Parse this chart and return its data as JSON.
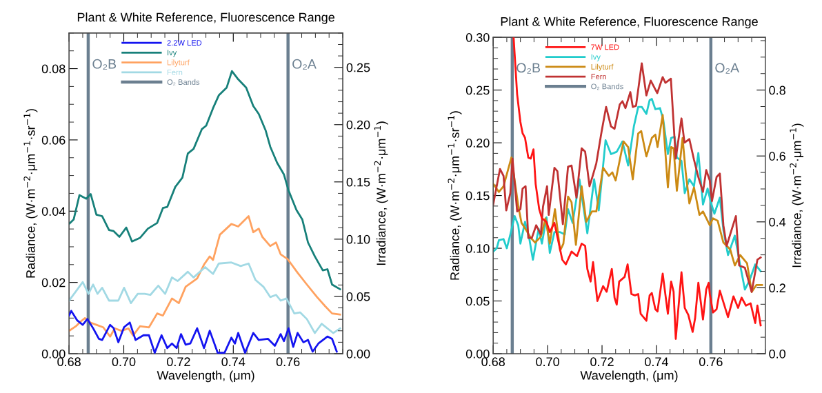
{
  "chart_data": [
    {
      "type": "line",
      "title": "Plant & White Reference, Fluorescence Range",
      "xlabel": "Wavelength, (μm)",
      "ylabel": "Radiance, (W·m$^{−2}$·μm$^{−1}$·sr$^{−1}$)",
      "y2label": "Irradiance, (W·m$^{−2}$·μm$^{−1}$)",
      "xlim": [
        0.68,
        0.78
      ],
      "xticks": [
        {
          "value": 0.68,
          "label": "0.68"
        },
        {
          "value": 0.7,
          "label": "0.70"
        },
        {
          "value": 0.72,
          "label": "0.72"
        },
        {
          "value": 0.74,
          "label": "0.74"
        },
        {
          "value": 0.76,
          "label": "0.76"
        }
      ],
      "ylim": [
        0,
        0.09
      ],
      "yticks": [
        {
          "value": 0,
          "label": "0.00"
        },
        {
          "value": 0.02,
          "label": "0.02"
        },
        {
          "value": 0.04,
          "label": "0.04"
        },
        {
          "value": 0.06,
          "label": "0.06"
        },
        {
          "value": 0.08,
          "label": "0.08"
        }
      ],
      "y2lim": [
        0,
        0.28
      ],
      "y2ticks": [
        {
          "value": 0,
          "label": "0.00"
        },
        {
          "value": 0.05,
          "label": "0.05"
        },
        {
          "value": 0.1,
          "label": "0.10"
        },
        {
          "value": 0.15,
          "label": "0.15"
        },
        {
          "value": 0.2,
          "label": "0.20"
        },
        {
          "value": 0.25,
          "label": "0.25"
        }
      ],
      "legend": "top left",
      "grid": false,
      "annotations": [
        "O₂ Bands"
      ],
      "ref_lines": [
        {
          "axis": "x",
          "value": 0.687,
          "label": "O₂B",
          "color": "#6b7f90"
        },
        {
          "axis": "x",
          "value": 0.76,
          "label": "O₂A",
          "color": "#6b7f90"
        }
      ],
      "series": [
        {
          "name": "2.2W LED",
          "color": "#1414f0",
          "axis": "y2",
          "x": [
            0.68,
            0.6808,
            0.6829,
            0.685,
            0.6867,
            0.6888,
            0.6909,
            0.6921,
            0.695,
            0.6963,
            0.698,
            0.7001,
            0.7022,
            0.7043,
            0.7072,
            0.7092,
            0.7113,
            0.7138,
            0.7159,
            0.7176,
            0.7193,
            0.7209,
            0.7226,
            0.7243,
            0.7268,
            0.7293,
            0.7314,
            0.7343,
            0.7368,
            0.7393,
            0.7406,
            0.7418,
            0.7443,
            0.7473,
            0.7493,
            0.7527,
            0.7552,
            0.7573,
            0.7585,
            0.7602,
            0.7619,
            0.7635,
            0.7656,
            0.7673,
            0.769,
            0.7711,
            0.7744,
            0.7761,
            0.7778
          ],
          "values": [
            0.0333,
            0.0374,
            0.0293,
            0.0252,
            0.0303,
            0.0222,
            0.013,
            0.012,
            0.0252,
            0.0222,
            0.01,
            0.0232,
            0.0272,
            0.012,
            0.0161,
            0.0161,
            0.0008,
            0.0161,
            0.0049,
            0.0089,
            0.0049,
            0.0171,
            0.0079,
            0.0089,
            0.0222,
            0.0049,
            0.0201,
            0.0008,
            0.0008,
            0.014,
            0.0089,
            0.0181,
            0.0008,
            0.0181,
            0.012,
            0.013,
            0.0069,
            0.0171,
            0.011,
            0.0222,
            0.0059,
            0.0181,
            0.01,
            0.012,
            0.0018,
            0.0089,
            0.015,
            0.013,
            0.0018
          ]
        },
        {
          "name": "Ivy",
          "color": "#17807a",
          "x": [
            0.68,
            0.6817,
            0.6838,
            0.6863,
            0.6879,
            0.69,
            0.6921,
            0.6946,
            0.6963,
            0.6984,
            0.7009,
            0.703,
            0.7059,
            0.7088,
            0.7122,
            0.7143,
            0.7159,
            0.7188,
            0.7214,
            0.7234,
            0.7255,
            0.7285,
            0.7301,
            0.7326,
            0.7347,
            0.7376,
            0.7395,
            0.7418,
            0.7447,
            0.7473,
            0.7493,
            0.7518,
            0.7535,
            0.756,
            0.7585,
            0.7602,
            0.7631,
            0.7652,
            0.7673,
            0.7698,
            0.7727,
            0.7744,
            0.7761,
            0.779
          ],
          "values": [
            0.0364,
            0.0377,
            0.0445,
            0.0435,
            0.0448,
            0.039,
            0.0386,
            0.0347,
            0.0344,
            0.0328,
            0.0354,
            0.0315,
            0.0325,
            0.0351,
            0.0367,
            0.0409,
            0.0412,
            0.0468,
            0.0494,
            0.0562,
            0.0575,
            0.063,
            0.064,
            0.0689,
            0.0725,
            0.0747,
            0.0793,
            0.077,
            0.0747,
            0.0695,
            0.0673,
            0.0627,
            0.0581,
            0.0536,
            0.0503,
            0.0458,
            0.0403,
            0.0377,
            0.0312,
            0.0273,
            0.0234,
            0.0237,
            0.0194,
            0.0181
          ]
        },
        {
          "name": "Lilyturf",
          "color": "#ffa260",
          "x": [
            0.68,
            0.6825,
            0.6842,
            0.6858,
            0.6879,
            0.69,
            0.6925,
            0.695,
            0.6967,
            0.6992,
            0.7017,
            0.7034,
            0.7059,
            0.7092,
            0.7122,
            0.7143,
            0.7176,
            0.7201,
            0.7226,
            0.7268,
            0.7293,
            0.7314,
            0.7326,
            0.7351,
            0.7393,
            0.7418,
            0.7456,
            0.7473,
            0.7493,
            0.7506,
            0.7535,
            0.7556,
            0.7573,
            0.7598,
            0.7635,
            0.7669,
            0.7706,
            0.7736,
            0.7761,
            0.779
          ],
          "values": [
            0.0064,
            0.0077,
            0.009,
            0.01,
            0.0087,
            0.0081,
            0.0074,
            0.0048,
            0.0071,
            0.0064,
            0.0071,
            0.0051,
            0.0077,
            0.0074,
            0.0113,
            0.0107,
            0.0155,
            0.0142,
            0.0188,
            0.0211,
            0.025,
            0.0273,
            0.0263,
            0.0334,
            0.0364,
            0.0357,
            0.0386,
            0.0341,
            0.0351,
            0.0328,
            0.0302,
            0.0312,
            0.0279,
            0.0266,
            0.0227,
            0.0194,
            0.0159,
            0.0133,
            0.0113,
            0.011
          ]
        },
        {
          "name": "Fern",
          "color": "#a2d9e4",
          "x": [
            0.68,
            0.6825,
            0.685,
            0.6871,
            0.6888,
            0.6904,
            0.6921,
            0.6946,
            0.698,
            0.7001,
            0.7026,
            0.7051,
            0.7076,
            0.7097,
            0.7126,
            0.7151,
            0.7176,
            0.7197,
            0.7234,
            0.7255,
            0.7297,
            0.7326,
            0.7347,
            0.7393,
            0.7427,
            0.7456,
            0.7481,
            0.751,
            0.7535,
            0.7556,
            0.7573,
            0.7594,
            0.7623,
            0.7644,
            0.7669,
            0.7698,
            0.7723,
            0.7765,
            0.779
          ],
          "values": [
            0.0149,
            0.0175,
            0.0201,
            0.0168,
            0.0194,
            0.0168,
            0.0185,
            0.0149,
            0.0149,
            0.0185,
            0.0142,
            0.0168,
            0.0168,
            0.0165,
            0.0191,
            0.0168,
            0.0214,
            0.0204,
            0.023,
            0.0214,
            0.0243,
            0.0224,
            0.0253,
            0.0256,
            0.0246,
            0.0253,
            0.0207,
            0.0188,
            0.0159,
            0.0165,
            0.0149,
            0.0155,
            0.0113,
            0.0116,
            0.0097,
            0.0058,
            0.0084,
            0.0058,
            0.0071
          ]
        }
      ]
    },
    {
      "type": "line",
      "title": "Plant & White Reference, Fluorescence Range",
      "xlabel": "Wavelength, (μm)",
      "ylabel": "Radiance, (W·m$^{−2}$·μm$^{−1}$·sr$^{−1}$)",
      "y2label": "Irradiance, (W·m$^{−2}$·μm$^{−1}$)",
      "xlim": [
        0.68,
        0.78
      ],
      "xticks": [
        {
          "value": 0.68,
          "label": "0.68"
        },
        {
          "value": 0.7,
          "label": "0.70"
        },
        {
          "value": 0.72,
          "label": "0.72"
        },
        {
          "value": 0.74,
          "label": "0.74"
        },
        {
          "value": 0.76,
          "label": "0.76"
        }
      ],
      "ylim": [
        0,
        0.3
      ],
      "yticks": [
        {
          "value": 0,
          "label": "0.00"
        },
        {
          "value": 0.05,
          "label": "0.05"
        },
        {
          "value": 0.1,
          "label": "0.10"
        },
        {
          "value": 0.15,
          "label": "0.15"
        },
        {
          "value": 0.2,
          "label": "0.20"
        },
        {
          "value": 0.25,
          "label": "0.25"
        },
        {
          "value": 0.3,
          "label": "0.30"
        }
      ],
      "y2lim": [
        0,
        0.96
      ],
      "y2ticks": [
        {
          "value": 0,
          "label": "0.0"
        },
        {
          "value": 0.2,
          "label": "0.2"
        },
        {
          "value": 0.4,
          "label": "0.4"
        },
        {
          "value": 0.6,
          "label": "0.6"
        },
        {
          "value": 0.8,
          "label": "0.8"
        }
      ],
      "legend": "top left",
      "grid": false,
      "annotations": [
        "O₂ Bands"
      ],
      "ref_lines": [
        {
          "axis": "x",
          "value": 0.687,
          "label": "O₂B",
          "color": "#6b7f90"
        },
        {
          "axis": "x",
          "value": 0.76,
          "label": "O₂A",
          "color": "#6b7f90"
        }
      ],
      "series": [
        {
          "name": "7W LED",
          "color": "#ff1414",
          "axis": "y2",
          "x": [
            0.6875,
            0.6888,
            0.69,
            0.6908,
            0.6917,
            0.6929,
            0.6938,
            0.6948,
            0.6956,
            0.6969,
            0.6979,
            0.6996,
            0.7008,
            0.7025,
            0.7054,
            0.7067,
            0.7088,
            0.7108,
            0.7125,
            0.7138,
            0.7146,
            0.7158,
            0.7167,
            0.7183,
            0.7204,
            0.7217,
            0.7236,
            0.7246,
            0.7254,
            0.7263,
            0.7283,
            0.7294,
            0.7308,
            0.7321,
            0.7333,
            0.7342,
            0.7363,
            0.7375,
            0.7383,
            0.7396,
            0.7404,
            0.7423,
            0.7442,
            0.7454,
            0.7463,
            0.7471,
            0.7492,
            0.7504,
            0.7517,
            0.7533,
            0.7542,
            0.7554,
            0.7571,
            0.7583,
            0.7592,
            0.7596,
            0.7608,
            0.7621,
            0.7633,
            0.7663,
            0.7683,
            0.77,
            0.7713,
            0.7729,
            0.7746,
            0.7763,
            0.7771,
            0.7783
          ],
          "values": [
            0.96,
            0.787,
            0.703,
            0.669,
            0.655,
            0.595,
            0.592,
            0.62,
            0.515,
            0.439,
            0.411,
            0.4,
            0.369,
            0.397,
            0.285,
            0.271,
            0.31,
            0.296,
            0.334,
            0.327,
            0.257,
            0.219,
            0.278,
            0.16,
            0.205,
            0.188,
            0.257,
            0.17,
            0.149,
            0.219,
            0.233,
            0.271,
            0.181,
            0.177,
            0.181,
            0.121,
            0.1,
            0.177,
            0.184,
            0.135,
            0.128,
            0.243,
            0.121,
            0.219,
            0.188,
            0.045,
            0.247,
            0.139,
            0.118,
            0.066,
            0.107,
            0.215,
            0.104,
            0.195,
            0.215,
            0.181,
            0.125,
            0.135,
            0.191,
            0.111,
            0.174,
            0.139,
            0.17,
            0.146,
            0.153,
            0.093,
            0.146,
            0.086
          ]
        },
        {
          "name": "Ivy",
          "color": "#22cccc",
          "x": [
            0.68,
            0.6813,
            0.6821,
            0.6838,
            0.685,
            0.6863,
            0.6879,
            0.6892,
            0.69,
            0.6917,
            0.6933,
            0.6946,
            0.6967,
            0.6979,
            0.6996,
            0.7008,
            0.7025,
            0.7046,
            0.7063,
            0.7075,
            0.7092,
            0.7117,
            0.7129,
            0.7146,
            0.7171,
            0.7188,
            0.7213,
            0.7233,
            0.7254,
            0.7275,
            0.7296,
            0.7317,
            0.7333,
            0.7346,
            0.7363,
            0.7375,
            0.7383,
            0.7396,
            0.7413,
            0.7425,
            0.7442,
            0.7454,
            0.7467,
            0.7475,
            0.7492,
            0.7504,
            0.7521,
            0.7538,
            0.7554,
            0.7571,
            0.7588,
            0.76,
            0.7613,
            0.7633,
            0.7646,
            0.7663,
            0.7688,
            0.7708,
            0.7725,
            0.7742,
            0.7763,
            0.7783
          ],
          "values": [
            0.0967,
            0.1,
            0.1076,
            0.1087,
            0.1,
            0.1131,
            0.1305,
            0.1218,
            0.1044,
            0.1251,
            0.1087,
            0.0891,
            0.1185,
            0.1044,
            0.1294,
            0.0956,
            0.1153,
            0.1153,
            0.1131,
            0.137,
            0.124,
            0.1654,
            0.1436,
            0.1142,
            0.1654,
            0.1359,
            0.2024,
            0.1893,
            0.1915,
            0.2013,
            0.1784,
            0.2155,
            0.234,
            0.234,
            0.2274,
            0.2405,
            0.2416,
            0.2318,
            0.2329,
            0.222,
            0.1893,
            0.2046,
            0.2057,
            0.1861,
            0.1828,
            0.1523,
            0.1654,
            0.1588,
            0.1904,
            0.1414,
            0.1566,
            0.1436,
            0.1327,
            0.1479,
            0.1174,
            0.0935,
            0.112,
            0.0837,
            0.0608,
            0.0695,
            0.0847,
            0.0782
          ]
        },
        {
          "name": "Lilyturf",
          "color": "#cc8a14",
          "x": [
            0.68,
            0.6821,
            0.6838,
            0.6867,
            0.6892,
            0.6904,
            0.6921,
            0.6938,
            0.6954,
            0.6975,
            0.6992,
            0.7008,
            0.7027,
            0.7046,
            0.7058,
            0.7075,
            0.7088,
            0.7104,
            0.7125,
            0.7142,
            0.7163,
            0.7179,
            0.7204,
            0.7225,
            0.7238,
            0.725,
            0.7279,
            0.7296,
            0.7313,
            0.7333,
            0.7344,
            0.7363,
            0.7383,
            0.7396,
            0.7404,
            0.7423,
            0.7442,
            0.7454,
            0.7463,
            0.7475,
            0.7496,
            0.7508,
            0.7521,
            0.7538,
            0.7558,
            0.7571,
            0.7596,
            0.7608,
            0.7625,
            0.7646,
            0.7671,
            0.7688,
            0.7708,
            0.7733,
            0.775,
            0.7767,
            0.7788
          ],
          "values": [
            0.161,
            0.1534,
            0.1588,
            0.1861,
            0.1403,
            0.124,
            0.1174,
            0.1098,
            0.1054,
            0.1109,
            0.1283,
            0.1044,
            0.137,
            0.0978,
            0.1044,
            0.149,
            0.1436,
            0.1033,
            0.1588,
            0.1251,
            0.1349,
            0.1349,
            0.1763,
            0.1686,
            0.1719,
            0.1643,
            0.2013,
            0.1959,
            0.1654,
            0.2089,
            0.2111,
            0.1871,
            0.2046,
            0.2078,
            0.1959,
            0.2264,
            0.1577,
            0.1959,
            0.1948,
            0.1545,
            0.2046,
            0.1708,
            0.1425,
            0.1577,
            0.1316,
            0.1349,
            0.1218,
            0.1283,
            0.1261,
            0.1054,
            0.0989,
            0.0837,
            0.0935,
            0.0858,
            0.0586,
            0.0651,
            0.0651
          ]
        },
        {
          "name": "Fern",
          "color": "#c03232",
          "x": [
            0.68,
            0.6808,
            0.6825,
            0.6838,
            0.6848,
            0.6863,
            0.6871,
            0.6888,
            0.69,
            0.6908,
            0.6919,
            0.6929,
            0.6942,
            0.6958,
            0.6975,
            0.6983,
            0.6998,
            0.7004,
            0.7025,
            0.7036,
            0.7056,
            0.7075,
            0.7088,
            0.7106,
            0.7125,
            0.7138,
            0.7154,
            0.7167,
            0.7179,
            0.7198,
            0.7215,
            0.7233,
            0.7246,
            0.7265,
            0.7275,
            0.7286,
            0.7304,
            0.7313,
            0.7325,
            0.7346,
            0.7363,
            0.7379,
            0.7403,
            0.7423,
            0.7433,
            0.7453,
            0.7471,
            0.7492,
            0.7503,
            0.7521,
            0.7538,
            0.7554,
            0.7571,
            0.7583,
            0.7596,
            0.7604,
            0.7621,
            0.7633,
            0.7646,
            0.7658,
            0.7671,
            0.7692,
            0.7704,
            0.7725,
            0.775,
            0.7771,
            0.7783
          ],
          "values": [
            0.1414,
            0.1523,
            0.1752,
            0.1686,
            0.1359,
            0.1523,
            0.185,
            0.1349,
            0.137,
            0.1566,
            0.1588,
            0.1098,
            0.1098,
            0.1218,
            0.1131,
            0.1392,
            0.1588,
            0.1316,
            0.1763,
            0.173,
            0.1229,
            0.1773,
            0.1784,
            0.1479,
            0.1948,
            0.1915,
            0.1588,
            0.1697,
            0.1806,
            0.21,
            0.234,
            0.2155,
            0.2133,
            0.2362,
            0.2394,
            0.2329,
            0.2481,
            0.234,
            0.2351,
            0.2754,
            0.2449,
            0.259,
            0.2471,
            0.2623,
            0.2569,
            0.2608,
            0.185,
            0.2231,
            0.2002,
            0.2035,
            0.1839,
            0.1675,
            0.1534,
            0.1741,
            0.1643,
            0.1447,
            0.1675,
            0.1708,
            0.1218,
            0.1022,
            0.1131,
            0.1305,
            0.0837,
            0.0815,
            0.0586,
            0.0891,
            0.0913
          ]
        }
      ]
    }
  ]
}
